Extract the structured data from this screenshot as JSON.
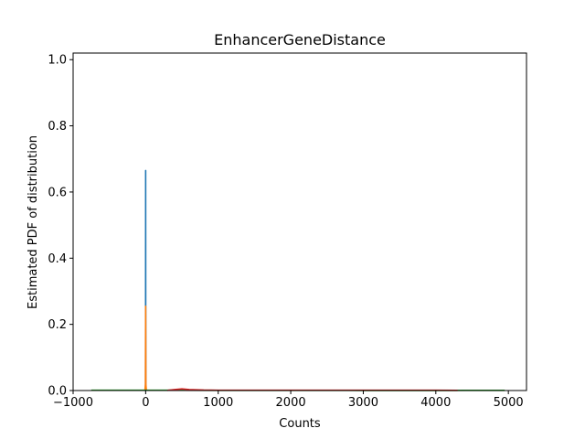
{
  "chart_data": {
    "type": "line",
    "title": "EnhancerGeneDistance",
    "xlabel": "Counts",
    "ylabel": "Estimated PDF of distribution",
    "xlim": [
      -1000,
      5250
    ],
    "ylim": [
      0,
      1.02
    ],
    "xticks": [
      -1000,
      0,
      1000,
      2000,
      3000,
      4000,
      5000
    ],
    "xtick_labels": [
      "−1000",
      "0",
      "1000",
      "2000",
      "3000",
      "4000",
      "5000"
    ],
    "yticks": [
      0,
      0.2,
      0.4,
      0.6,
      0.8,
      1.0
    ],
    "ytick_labels": [
      "0.0",
      "0.2",
      "0.4",
      "0.6",
      "0.8",
      "1.0"
    ],
    "grid": false,
    "series": [
      {
        "color": "#1f77b4",
        "x": [
          -8,
          -2,
          -1,
          0,
          1,
          2,
          8
        ],
        "y": [
          0,
          0,
          0.2,
          0.665,
          0.2,
          0,
          0
        ]
      },
      {
        "color": "#ff7f0e",
        "x": [
          -10,
          -3,
          -1,
          0,
          1,
          3,
          10
        ],
        "y": [
          0,
          0.02,
          0.18,
          0.255,
          0.18,
          0.02,
          0
        ]
      },
      {
        "color": "#2ca02c",
        "x": [
          -750,
          -500,
          0,
          500,
          1000,
          2000,
          3000,
          4000,
          4500,
          4950
        ],
        "y": [
          0.0008,
          0.0008,
          0.0008,
          0.0008,
          0.0006,
          0.0004,
          0.0003,
          0.0003,
          0.0006,
          0.0006
        ]
      },
      {
        "color": "#d62728",
        "x": [
          300,
          400,
          500,
          600,
          800,
          1000,
          2000,
          3000,
          4000,
          4300
        ],
        "y": [
          0.0005,
          0.003,
          0.005,
          0.003,
          0.0015,
          0.001,
          0.0008,
          0.0008,
          0.0008,
          0.0005
        ]
      }
    ]
  }
}
